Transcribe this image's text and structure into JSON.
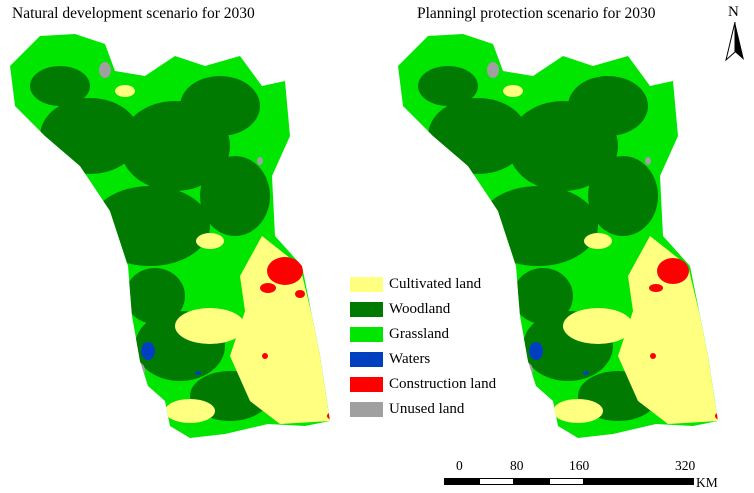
{
  "titles": {
    "left": "Natural development scenario for 2030",
    "right": "Planningl protection scenario for 2030"
  },
  "legend": [
    {
      "label": "Cultivated land",
      "color": "#ffff80"
    },
    {
      "label": "Woodland",
      "color": "#007a00"
    },
    {
      "label": "Grassland",
      "color": "#00e600"
    },
    {
      "label": "Waters",
      "color": "#0040c0"
    },
    {
      "label": "Construction land",
      "color": "#ff0000"
    },
    {
      "label": "Unused land",
      "color": "#a0a0a0"
    }
  ],
  "north_arrow": {
    "label": "N"
  },
  "scale_bar": {
    "ticks": [
      "0",
      "80",
      "160",
      "320"
    ],
    "unit": "KM"
  }
}
